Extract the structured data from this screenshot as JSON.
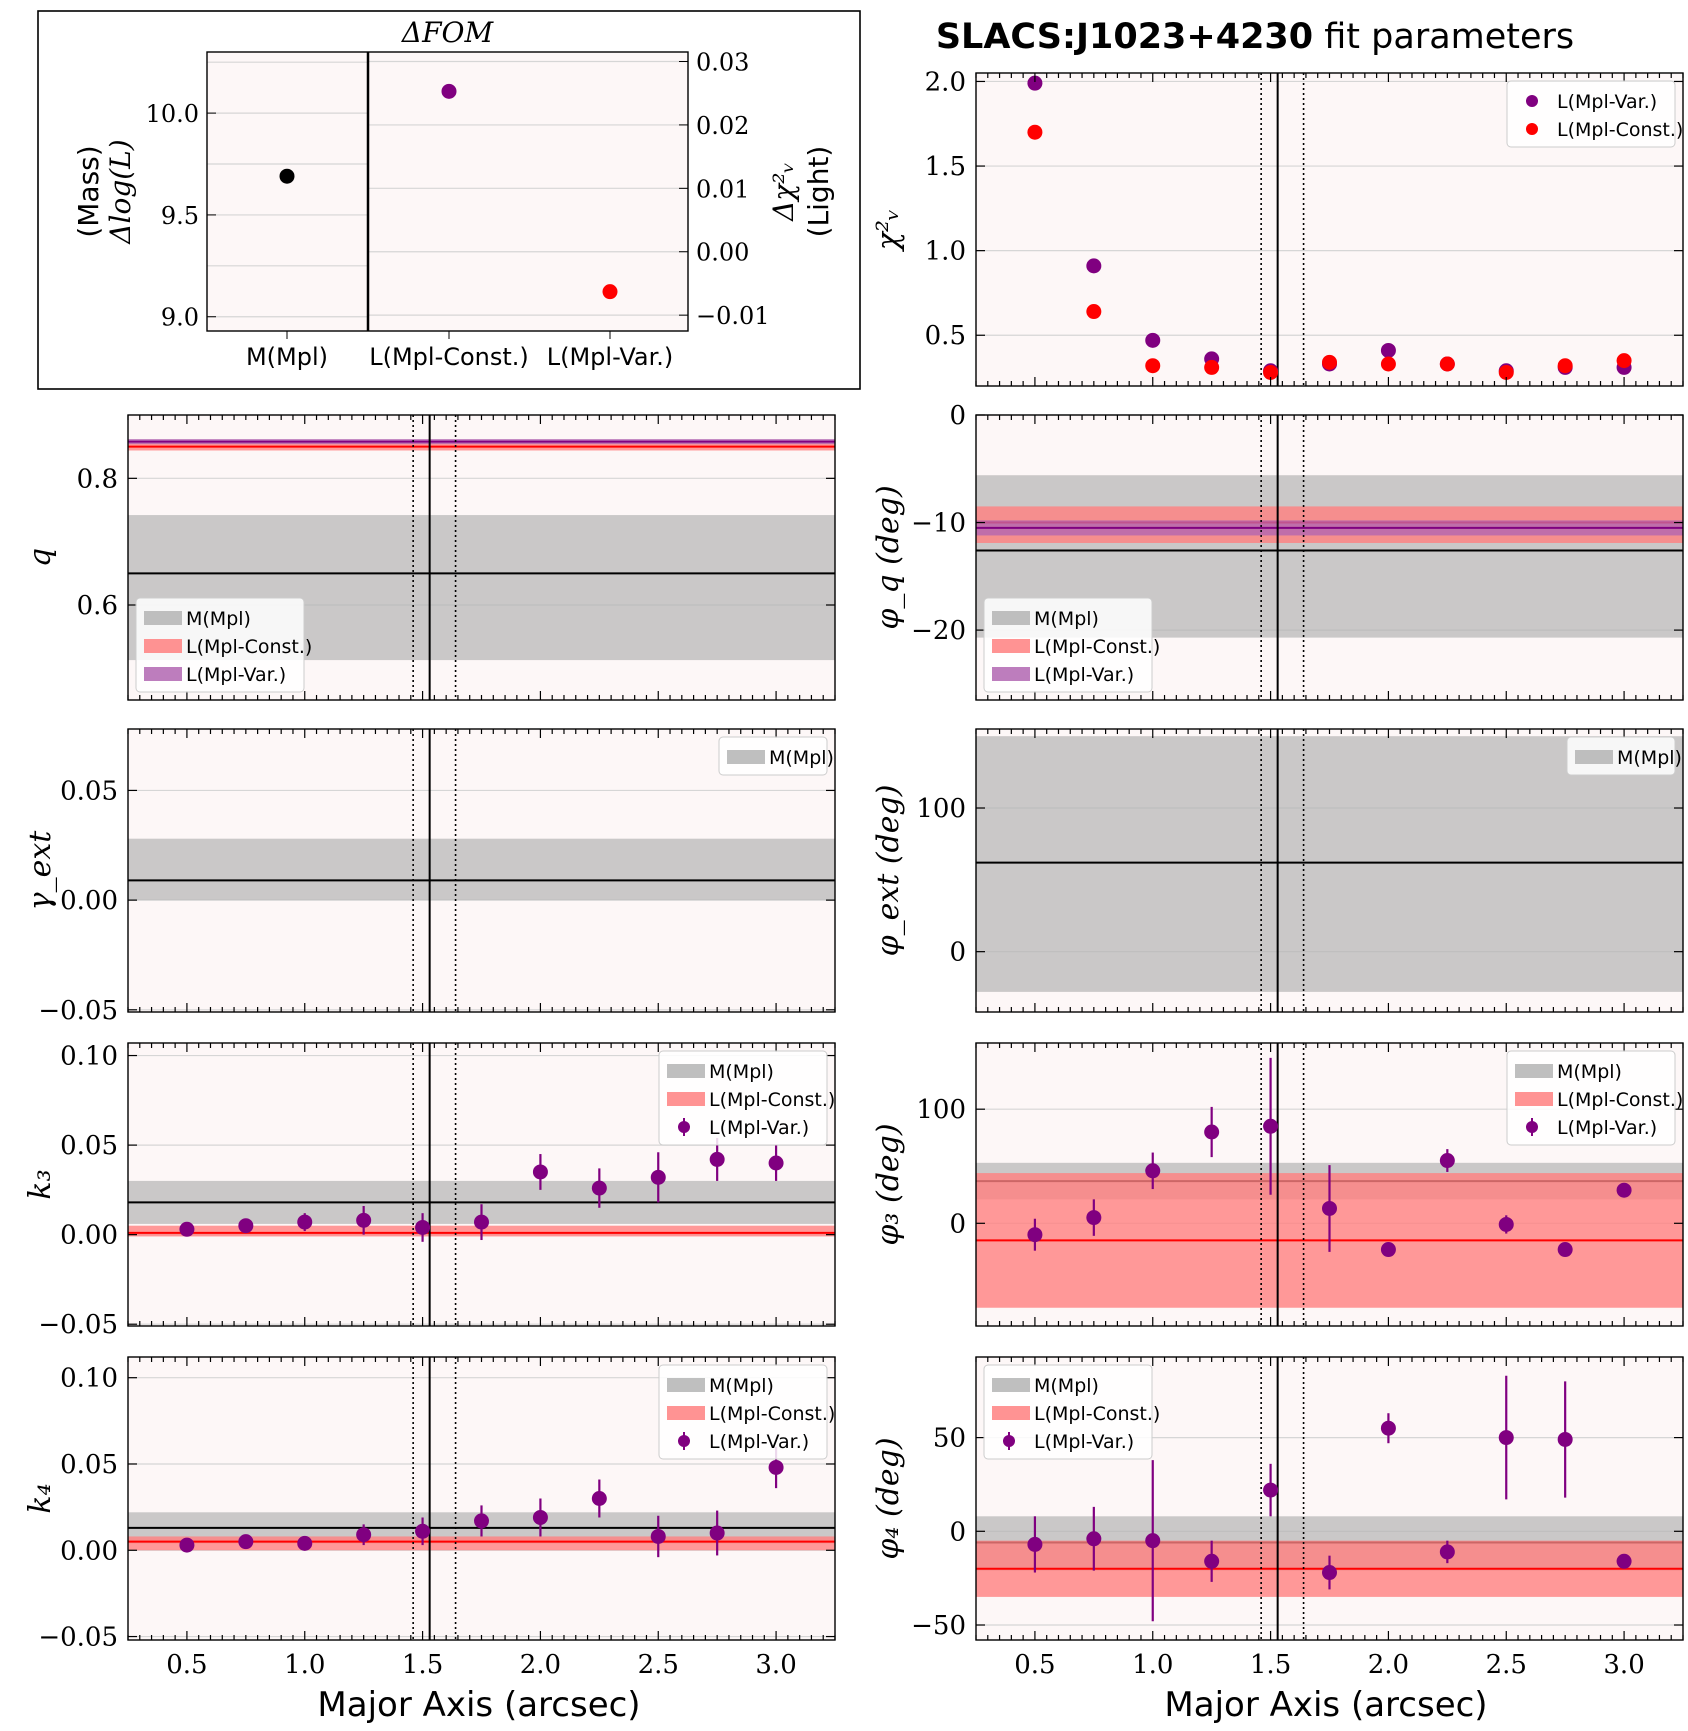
{
  "figure_title": {
    "bold": "SLACS:J1023+4230",
    "rest": " fit parameters"
  },
  "colors": {
    "panel_bg": "#fdf7f7",
    "mass": "#000000",
    "mass_band": "#b4b4b4",
    "light_const": "#ff0000",
    "light_const_band": "#ff8080",
    "light_var": "#800080",
    "light_var_band": "#b266b2",
    "grid": "#d6d6d6"
  },
  "chart_data": [
    {
      "id": "fom",
      "type": "scatter",
      "title": "ΔFOM",
      "categories": [
        "M(Mpl)",
        "L(Mpl-Const.)",
        "L(Mpl-Var.)"
      ],
      "left_axis": {
        "label_top": "(Mass)",
        "label_bottom": "Δlog(L)",
        "ylim": [
          8.93,
          10.3
        ],
        "ticks": [
          "9.0",
          "9.5",
          "10.0"
        ],
        "tick_values": [
          9.0,
          9.5,
          10.0
        ]
      },
      "right_axis": {
        "label_top": "Δχ²ᵥ",
        "label_bottom": "(Light)",
        "ylim": [
          -0.0125,
          0.0315
        ],
        "ticks": [
          "−0.01",
          "0.00",
          "0.01",
          "0.02",
          "0.03"
        ],
        "tick_values": [
          -0.01,
          0.0,
          0.01,
          0.02,
          0.03
        ]
      },
      "points": [
        {
          "category": "M(Mpl)",
          "axis": "left",
          "value": 9.69,
          "color": "#000000"
        },
        {
          "category": "L(Mpl-Const.)",
          "axis": "right",
          "value": 0.0253,
          "color": "#800080"
        },
        {
          "category": "L(Mpl-Var.)",
          "axis": "right",
          "value": -0.0063,
          "color": "#ff0000"
        }
      ]
    },
    {
      "id": "chi2",
      "type": "scatter",
      "ylabel": "χ²ᵥ",
      "xlim": [
        0.25,
        3.25
      ],
      "ylim": [
        0.2,
        2.05
      ],
      "yticks": [
        "0.5",
        "1.0",
        "1.5",
        "2.0"
      ],
      "ytick_values": [
        0.5,
        1.0,
        1.5,
        2.0
      ],
      "legend": {
        "position": "top-right",
        "entries": [
          "L(Mpl-Var.)",
          "L(Mpl-Const.)"
        ]
      },
      "series": [
        {
          "name": "L(Mpl-Var.)",
          "color": "#800080",
          "x": [
            0.5,
            0.75,
            1.0,
            1.25,
            1.5,
            1.75,
            2.0,
            2.25,
            2.5,
            2.75,
            3.0
          ],
          "y": [
            1.99,
            0.91,
            0.47,
            0.36,
            0.29,
            0.33,
            0.41,
            0.33,
            0.29,
            0.31,
            0.31
          ]
        },
        {
          "name": "L(Mpl-Const.)",
          "color": "#ff0000",
          "x": [
            0.5,
            0.75,
            1.0,
            1.25,
            1.5,
            1.75,
            2.0,
            2.25,
            2.5,
            2.75,
            3.0
          ],
          "y": [
            1.7,
            0.64,
            0.32,
            0.31,
            0.28,
            0.34,
            0.33,
            0.33,
            0.28,
            0.32,
            0.35
          ]
        }
      ]
    },
    {
      "id": "q",
      "type": "line",
      "ylabel": "q",
      "xlim": [
        0.25,
        3.25
      ],
      "ylim": [
        0.45,
        0.9
      ],
      "yticks": [
        "0.6",
        "0.8"
      ],
      "ytick_values": [
        0.6,
        0.8
      ],
      "legend": {
        "position": "lower-left",
        "entries": [
          "M(Mpl)",
          "L(Mpl-Const.)",
          "L(Mpl-Var.)"
        ]
      },
      "bands": [
        {
          "name": "M(Mpl)",
          "color": "#b4b4b4",
          "center": 0.65,
          "low": 0.513,
          "high": 0.742
        },
        {
          "name": "L(Mpl-Const.)",
          "color": "#ff8080",
          "center": 0.85,
          "low": 0.844,
          "high": 0.856
        },
        {
          "name": "L(Mpl-Var.)",
          "color": "#b266b2",
          "center": 0.858,
          "low": 0.854,
          "high": 0.862
        }
      ]
    },
    {
      "id": "phi_q",
      "type": "line",
      "ylabel": "φ_q (deg)",
      "xlim": [
        0.25,
        3.25
      ],
      "ylim": [
        -26.5,
        0
      ],
      "yticks": [
        "−20",
        "−10",
        "0"
      ],
      "ytick_values": [
        -20,
        -10,
        0
      ],
      "legend": {
        "position": "lower-left",
        "entries": [
          "M(Mpl)",
          "L(Mpl-Const.)",
          "L(Mpl-Var.)"
        ]
      },
      "bands": [
        {
          "name": "M(Mpl)",
          "color": "#b4b4b4",
          "center": -12.6,
          "low": -20.7,
          "high": -5.6
        },
        {
          "name": "L(Mpl-Const.)",
          "color": "#ff8080",
          "center": -10.0,
          "low": -11.9,
          "high": -8.5
        },
        {
          "name": "L(Mpl-Var.)",
          "color": "#b266b2",
          "center": -10.5,
          "low": -11.2,
          "high": -9.8
        }
      ]
    },
    {
      "id": "gamma_ext",
      "type": "line",
      "ylabel": "γ_ext",
      "xlim": [
        0.25,
        3.25
      ],
      "ylim": [
        -0.051,
        0.078
      ],
      "yticks": [
        "−0.05",
        "0.00",
        "0.05"
      ],
      "ytick_values": [
        -0.05,
        0.0,
        0.05
      ],
      "legend": {
        "position": "top-right",
        "entries": [
          "M(Mpl)"
        ]
      },
      "bands": [
        {
          "name": "M(Mpl)",
          "color": "#b4b4b4",
          "center": 0.009,
          "low": 0.0,
          "high": 0.028
        }
      ]
    },
    {
      "id": "phi_ext",
      "type": "line",
      "ylabel": "φ_ext (deg)",
      "xlim": [
        0.25,
        3.25
      ],
      "ylim": [
        -42,
        155
      ],
      "yticks": [
        "0",
        "100"
      ],
      "ytick_values": [
        0,
        100
      ],
      "legend": {
        "position": "top-right",
        "entries": [
          "M(Mpl)"
        ]
      },
      "bands": [
        {
          "name": "M(Mpl)",
          "color": "#b4b4b4",
          "center": 62,
          "low": -28,
          "high": 150
        }
      ]
    },
    {
      "id": "k3",
      "type": "scatter",
      "ylabel": "k₃",
      "xlim": [
        0.25,
        3.25
      ],
      "ylim": [
        -0.051,
        0.107
      ],
      "yticks": [
        "−0.05",
        "0.00",
        "0.05",
        "0.10"
      ],
      "ytick_values": [
        -0.05,
        0.0,
        0.05,
        0.1
      ],
      "legend": {
        "position": "top-right",
        "entries": [
          "M(Mpl)",
          "L(Mpl-Const.)",
          "L(Mpl-Var.)"
        ]
      },
      "bands": [
        {
          "name": "M(Mpl)",
          "color": "#b4b4b4",
          "center": 0.018,
          "low": 0.006,
          "high": 0.03
        },
        {
          "name": "L(Mpl-Const.)",
          "color": "#ff8080",
          "center": 0.001,
          "low": -0.001,
          "high": 0.005
        }
      ],
      "series": [
        {
          "name": "L(Mpl-Var.)",
          "color": "#800080",
          "x": [
            0.5,
            0.75,
            1.0,
            1.25,
            1.5,
            1.75,
            2.0,
            2.25,
            2.5,
            2.75,
            3.0
          ],
          "y": [
            0.003,
            0.005,
            0.007,
            0.008,
            0.004,
            0.007,
            0.035,
            0.026,
            0.032,
            0.042,
            0.04
          ],
          "err": [
            0.002,
            0.003,
            0.005,
            0.008,
            0.008,
            0.01,
            0.01,
            0.011,
            0.014,
            0.012,
            0.01
          ]
        }
      ]
    },
    {
      "id": "phi_3",
      "type": "scatter",
      "ylabel": "φ₃ (deg)",
      "xlim": [
        0.25,
        3.25
      ],
      "ylim": [
        -90,
        158
      ],
      "yticks": [
        "0",
        "100"
      ],
      "ytick_values": [
        0,
        100
      ],
      "legend": {
        "position": "top-right",
        "entries": [
          "M(Mpl)",
          "L(Mpl-Const.)",
          "L(Mpl-Var.)"
        ]
      },
      "bands": [
        {
          "name": "M(Mpl)",
          "color": "#b4b4b4",
          "center": 37,
          "low": 21,
          "high": 53
        },
        {
          "name": "L(Mpl-Const.)",
          "color": "#ff8080",
          "center": -15,
          "low": -74,
          "high": 44
        }
      ],
      "series": [
        {
          "name": "L(Mpl-Var.)",
          "color": "#800080",
          "x": [
            0.5,
            0.75,
            1.0,
            1.25,
            1.5,
            1.75,
            2.0,
            2.25,
            2.5,
            2.75,
            3.0
          ],
          "y": [
            -10,
            5,
            46,
            80,
            85,
            13,
            -23,
            55,
            -1,
            -23,
            29
          ],
          "err": [
            14,
            16,
            16,
            22,
            60,
            38,
            4,
            10,
            8,
            4,
            4
          ]
        }
      ]
    },
    {
      "id": "k4",
      "type": "scatter",
      "ylabel": "k₄",
      "xlim": [
        0.25,
        3.25
      ],
      "ylim": [
        -0.052,
        0.112
      ],
      "yticks": [
        "−0.05",
        "0.00",
        "0.05",
        "0.10"
      ],
      "ytick_values": [
        -0.05,
        0.0,
        0.05,
        0.1
      ],
      "legend": {
        "position": "top-right",
        "entries": [
          "M(Mpl)",
          "L(Mpl-Const.)",
          "L(Mpl-Var.)"
        ]
      },
      "bands": [
        {
          "name": "M(Mpl)",
          "color": "#b4b4b4",
          "center": 0.013,
          "low": 0.004,
          "high": 0.022
        },
        {
          "name": "L(Mpl-Const.)",
          "color": "#ff8080",
          "center": 0.005,
          "low": 0.0,
          "high": 0.008
        }
      ],
      "series": [
        {
          "name": "L(Mpl-Var.)",
          "color": "#800080",
          "x": [
            0.5,
            0.75,
            1.0,
            1.25,
            1.5,
            1.75,
            2.0,
            2.25,
            2.5,
            2.75,
            3.0
          ],
          "y": [
            0.003,
            0.005,
            0.004,
            0.009,
            0.011,
            0.017,
            0.019,
            0.03,
            0.008,
            0.01,
            0.048
          ],
          "err": [
            0.002,
            0.002,
            0.003,
            0.006,
            0.008,
            0.009,
            0.011,
            0.011,
            0.012,
            0.013,
            0.012
          ]
        }
      ]
    },
    {
      "id": "phi_4",
      "type": "scatter",
      "ylabel": "φ₄ (deg)",
      "xlim": [
        0.25,
        3.25
      ],
      "ylim": [
        -58,
        93
      ],
      "yticks": [
        "−50",
        "0",
        "50"
      ],
      "ytick_values": [
        -50,
        0,
        50
      ],
      "legend": {
        "position": "top-left",
        "entries": [
          "M(Mpl)",
          "L(Mpl-Const.)",
          "L(Mpl-Var.)"
        ]
      },
      "bands": [
        {
          "name": "M(Mpl)",
          "color": "#b4b4b4",
          "center": -6,
          "low": -21,
          "high": 8
        },
        {
          "name": "L(Mpl-Const.)",
          "color": "#ff8080",
          "center": -20,
          "low": -35,
          "high": -5
        }
      ],
      "series": [
        {
          "name": "L(Mpl-Var.)",
          "color": "#800080",
          "x": [
            0.5,
            0.75,
            1.0,
            1.25,
            1.5,
            1.75,
            2.0,
            2.25,
            2.5,
            2.75,
            3.0
          ],
          "y": [
            -7,
            -4,
            -5,
            -16,
            22,
            -22,
            55,
            -11,
            50,
            49,
            -16
          ],
          "err": [
            15,
            17,
            43,
            11,
            14,
            9,
            8,
            6,
            33,
            31,
            3
          ]
        }
      ]
    }
  ],
  "shared_x": {
    "xlabel": "Major Axis (arcsec)",
    "xticks": [
      "0.5",
      "1.0",
      "1.5",
      "2.0",
      "2.5",
      "3.0"
    ],
    "xtick_values": [
      0.5,
      1.0,
      1.5,
      2.0,
      2.5,
      3.0
    ]
  },
  "vertical_lines": {
    "solid": 1.53,
    "dotted": [
      1.46,
      1.64
    ]
  }
}
